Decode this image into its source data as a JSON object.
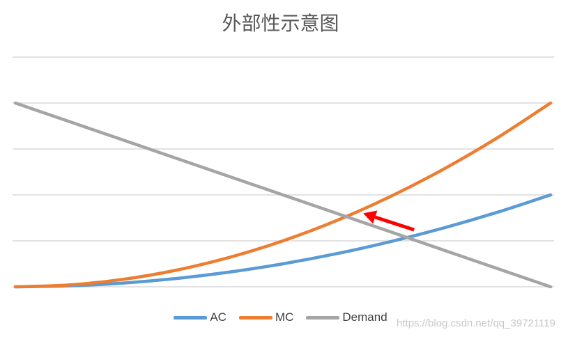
{
  "chart_data": {
    "type": "line",
    "title": "外部性示意图",
    "xlabel": "",
    "ylabel": "",
    "grid": true,
    "legend_position": "bottom",
    "ylim": [
      0,
      4
    ],
    "x": [
      0,
      1,
      2,
      3,
      4,
      5,
      6,
      7,
      8,
      9,
      10
    ],
    "series": [
      {
        "name": "AC",
        "color": "#5b9bd5",
        "values": [
          0,
          0.02,
          0.08,
          0.18,
          0.32,
          0.5,
          0.72,
          0.98,
          1.28,
          1.62,
          2.0
        ]
      },
      {
        "name": "MC",
        "color": "#ed7d31",
        "values": [
          0,
          0.04,
          0.16,
          0.36,
          0.64,
          1.0,
          1.44,
          1.96,
          2.56,
          3.24,
          4.0
        ]
      },
      {
        "name": "Demand",
        "color": "#a5a5a5",
        "values": [
          4.0,
          3.6,
          3.2,
          2.8,
          2.4,
          2.0,
          1.6,
          1.2,
          0.8,
          0.4,
          0.0
        ]
      }
    ],
    "annotation": {
      "type": "arrow",
      "color": "#ff0000",
      "from_x": 7.45,
      "from_y": 1.24,
      "to_x": 6.5,
      "to_y": 1.6
    }
  },
  "watermark": "https://blog.csdn.net/qq_39721119"
}
